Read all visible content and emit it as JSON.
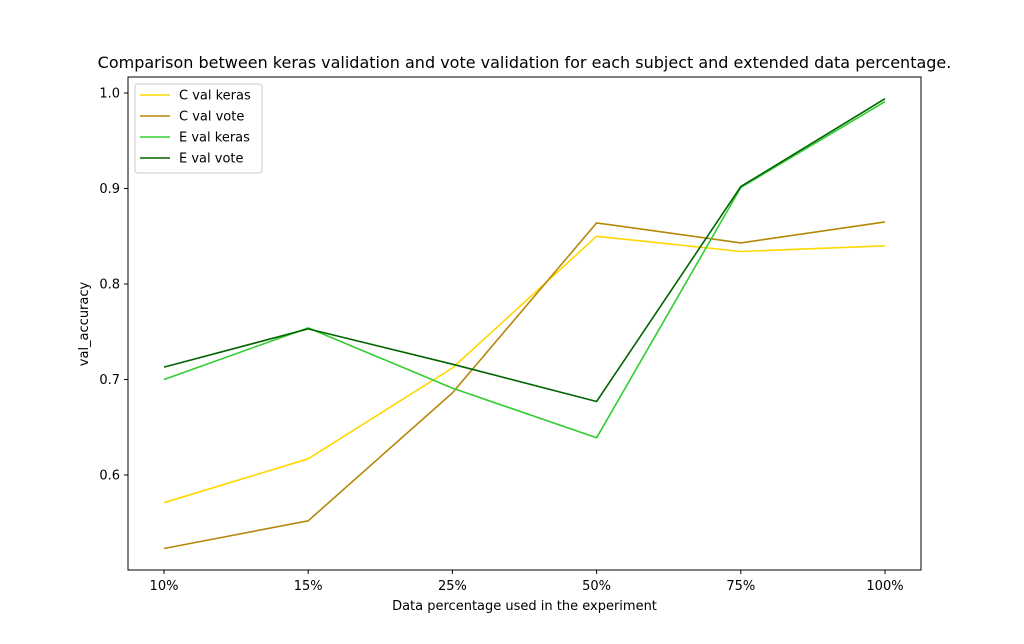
{
  "chart_data": {
    "type": "line",
    "title": "Comparison between keras validation and vote validation for each subject and extended data percentage.",
    "xlabel": "Data percentage used in the experiment",
    "ylabel": "val_accuracy",
    "categories": [
      "10%",
      "15%",
      "25%",
      "50%",
      "75%",
      "100%"
    ],
    "ylim": [
      0.5,
      1.0
    ],
    "yticks": [
      0.6,
      0.7,
      0.8,
      0.9,
      1.0
    ],
    "ytick_labels": [
      "0.6",
      "0.7",
      "0.8",
      "0.9",
      "1.0"
    ],
    "grid": false,
    "legend_position": "top-left",
    "series": [
      {
        "name": "C val keras",
        "color": "#FFD700",
        "values": [
          0.571,
          0.617,
          0.712,
          0.85,
          0.834,
          0.84
        ]
      },
      {
        "name": "C val vote",
        "color": "#B8860B",
        "values": [
          0.523,
          0.552,
          0.686,
          0.864,
          0.843,
          0.865
        ]
      },
      {
        "name": "E val keras",
        "color": "#32CD32",
        "values": [
          0.7,
          0.754,
          0.691,
          0.639,
          0.901,
          0.991
        ]
      },
      {
        "name": "E val vote",
        "color": "#006400",
        "values": [
          0.713,
          0.753,
          0.716,
          0.677,
          0.902,
          0.994
        ]
      }
    ]
  }
}
